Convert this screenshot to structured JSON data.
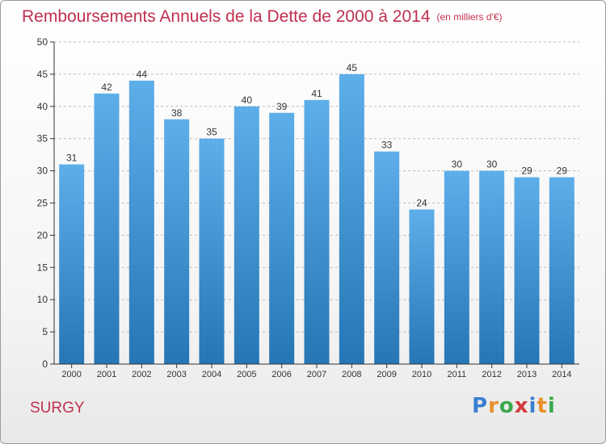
{
  "header": {
    "title": "Remboursements Annuels de la Dette de 2000 à 2014",
    "subtitle": "(en milliers d'€)"
  },
  "footer": {
    "commune": "SURGY",
    "logo": {
      "letters": [
        "P",
        "r",
        "o",
        "x",
        "i",
        "t",
        "i"
      ],
      "colors": [
        "#3b7fd0",
        "#e8902a",
        "#3aa84b",
        "#d33a3a",
        "#3b7fd0",
        "#e8902a",
        "#3aa84b"
      ]
    }
  },
  "colors": {
    "bar_top": "#5daee9",
    "bar_bottom": "#2676b5",
    "axis": "#333333",
    "grid": "#bcbcbc",
    "label": "#333333"
  },
  "chart_data": {
    "type": "bar",
    "title": "Remboursements Annuels de la Dette de 2000 à 2014",
    "subtitle": "(en milliers d'€)",
    "xlabel": "",
    "ylabel": "",
    "ylim": [
      0,
      50
    ],
    "yticks": [
      0,
      5,
      10,
      15,
      20,
      25,
      30,
      35,
      40,
      45,
      50
    ],
    "grid": "horizontal dashed",
    "categories": [
      "2000",
      "2001",
      "2002",
      "2003",
      "2004",
      "2005",
      "2006",
      "2007",
      "2008",
      "2009",
      "2010",
      "2011",
      "2012",
      "2013",
      "2014"
    ],
    "values": [
      31,
      42,
      44,
      38,
      35,
      40,
      39,
      41,
      45,
      33,
      24,
      30,
      30,
      29,
      29
    ]
  }
}
